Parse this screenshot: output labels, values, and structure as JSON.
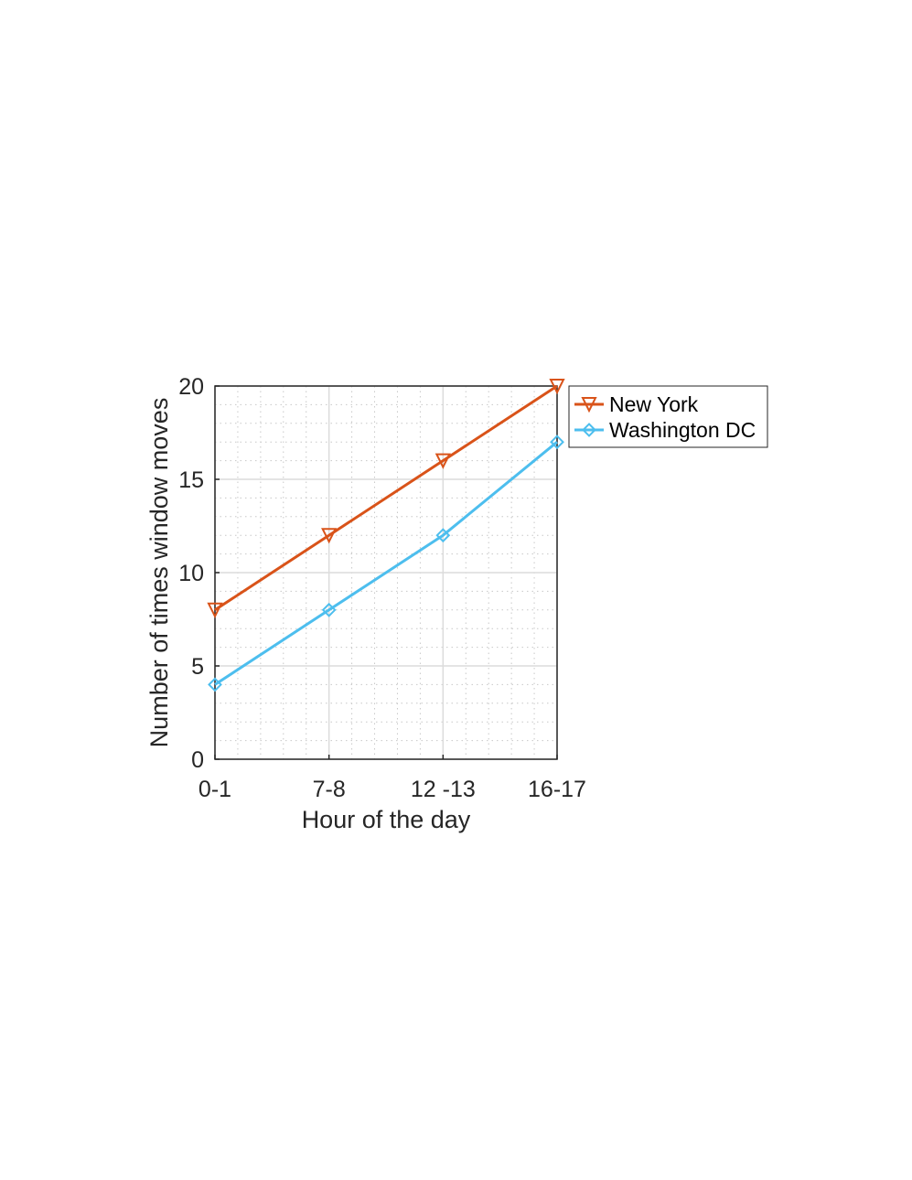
{
  "chart_data": {
    "type": "line",
    "categories": [
      "0-1",
      "7-8",
      "12 -13",
      "16-17"
    ],
    "xlabel": "Hour of the day",
    "ylabel": "Number of times window moves",
    "ylim": [
      0,
      20
    ],
    "yticks": [
      "0",
      "5",
      "10",
      "15",
      "20"
    ],
    "grid": true,
    "minor_grid": true,
    "legend_position": "outside-top-right",
    "series": [
      {
        "name": "New York",
        "values": [
          8,
          12,
          16,
          20
        ],
        "color": "#D95319",
        "marker": "triangle-down"
      },
      {
        "name": "Washington DC",
        "values": [
          4,
          8,
          12,
          17
        ],
        "color": "#4DBEEE",
        "marker": "diamond"
      }
    ]
  }
}
